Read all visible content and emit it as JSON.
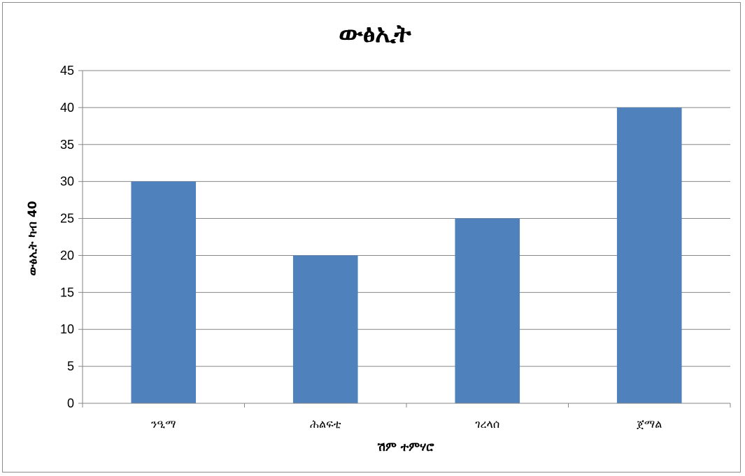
{
  "chart_data": {
    "type": "bar",
    "title": "ውፅኢት",
    "xlabel": "ሽም ተምሃሮ",
    "ylabel": "ውፅኢት ካብ 40",
    "categories": [
      "ንዒማ",
      "ሕልፍቲ",
      "ገረላሰ",
      "ጀማል"
    ],
    "values": [
      30,
      20,
      25,
      40
    ],
    "ylim": [
      0,
      45
    ],
    "ytick_step": 5,
    "grid": true,
    "legend": "none",
    "bar_color": "#4f81bd",
    "grid_color": "#868686"
  }
}
